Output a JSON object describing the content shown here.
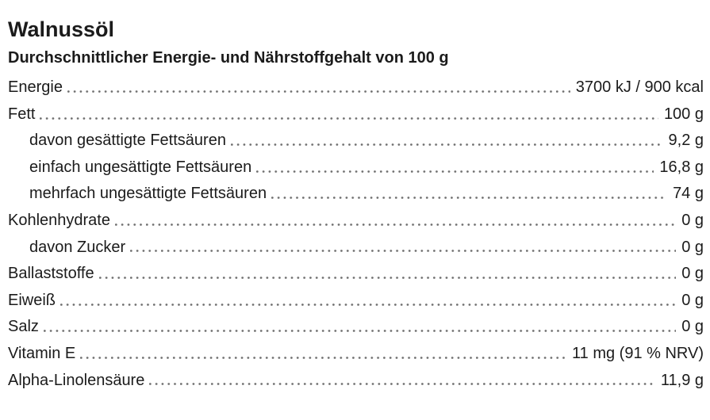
{
  "page": {
    "title": "Walnussöl",
    "subtitle": "Durchschnittlicher Energie- und Nährstoffgehalt von 100 g"
  },
  "table": {
    "rows": [
      {
        "label": "Energie",
        "value": "3700 kJ / 900 kcal",
        "indent": false
      },
      {
        "label": "Fett",
        "value": "100 g",
        "indent": false
      },
      {
        "label": "davon gesättigte Fettsäuren",
        "value": "9,2 g",
        "indent": true
      },
      {
        "label": "einfach ungesättigte Fettsäuren",
        "value": "16,8 g",
        "indent": true
      },
      {
        "label": "mehrfach ungesättigte Fettsäuren",
        "value": "74 g",
        "indent": true
      },
      {
        "label": "Kohlenhydrate",
        "value": "0 g",
        "indent": false
      },
      {
        "label": "davon Zucker",
        "value": "0 g",
        "indent": true
      },
      {
        "label": "Ballaststoffe",
        "value": "0 g",
        "indent": false
      },
      {
        "label": "Eiweiß",
        "value": "0 g",
        "indent": false
      },
      {
        "label": "Salz",
        "value": "0 g",
        "indent": false
      },
      {
        "label": "Vitamin E",
        "value": "11 mg (91 % NRV)",
        "indent": false
      },
      {
        "label": "Alpha-Linolensäure",
        "value": "11,9 g",
        "indent": false
      }
    ]
  },
  "colors": {
    "text": "#1b1b1b",
    "dots": "#6f6f6f",
    "background": "#ffffff"
  }
}
